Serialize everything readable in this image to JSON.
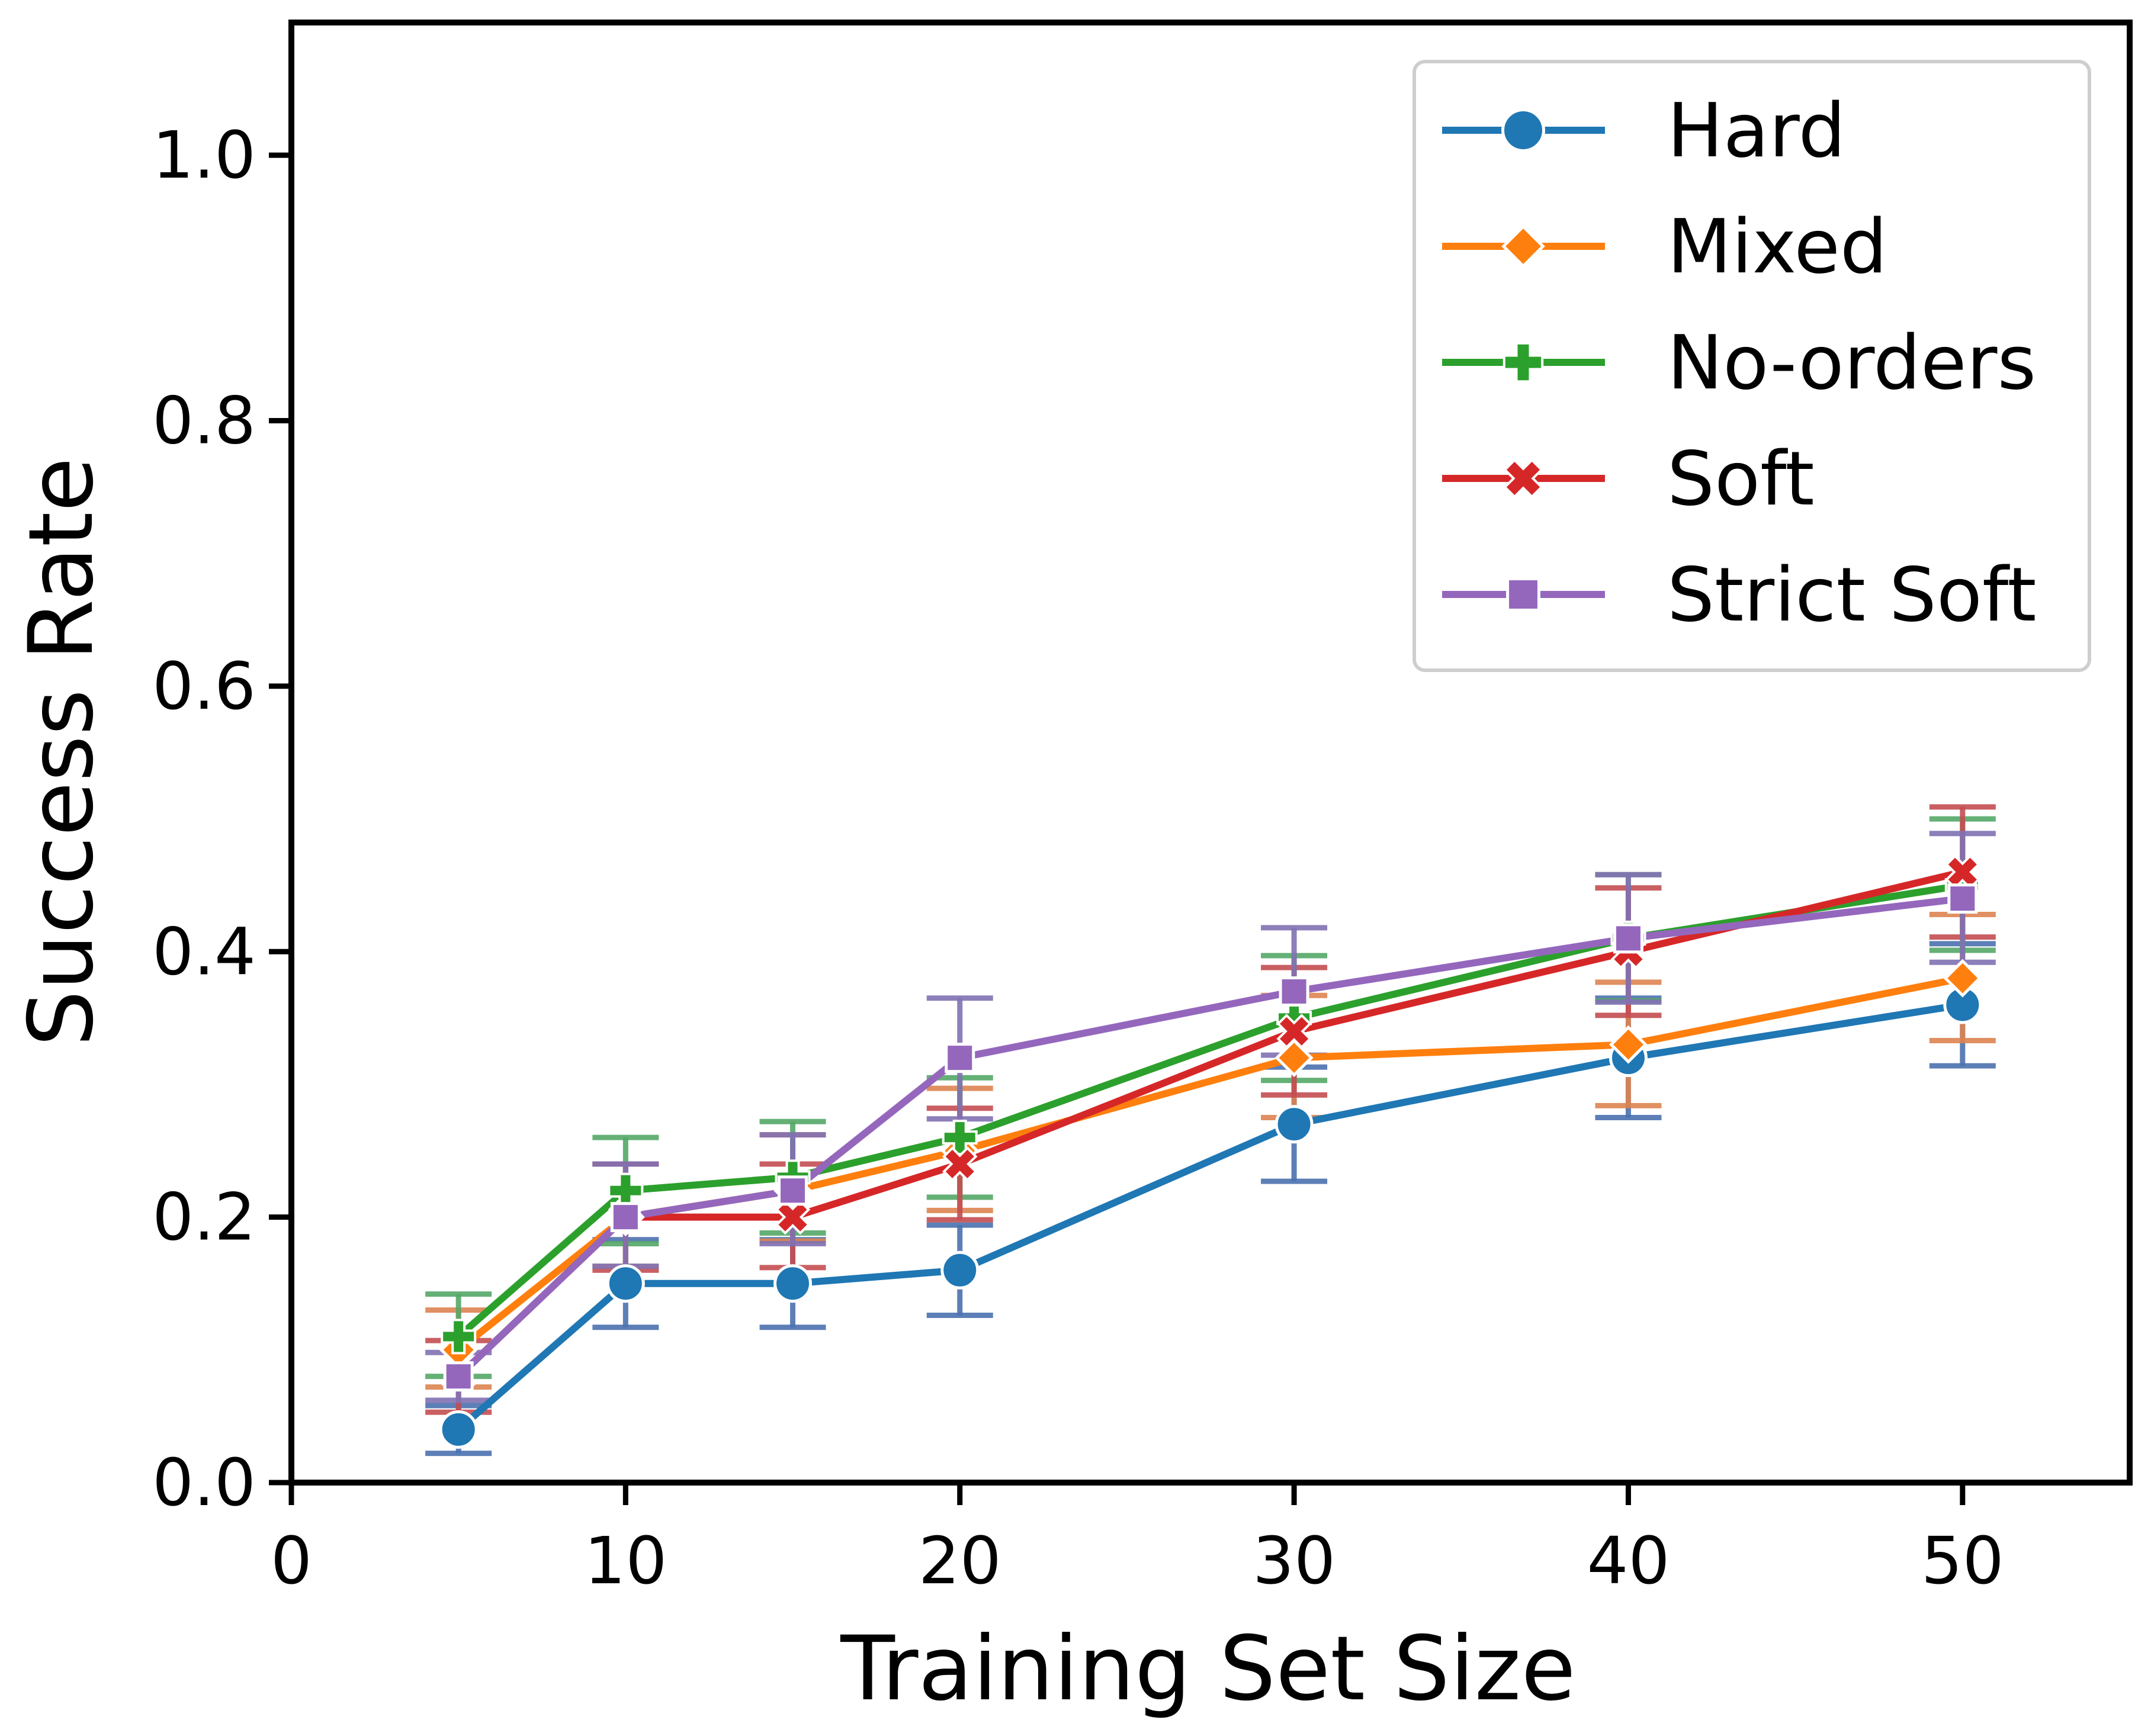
{
  "chart_data": {
    "type": "line",
    "title": "",
    "xlabel": "Training Set Size",
    "ylabel": "Success Rate",
    "xlim": [
      0,
      55
    ],
    "ylim": [
      0,
      1.1
    ],
    "xticks": [
      0,
      10,
      20,
      30,
      40,
      50
    ],
    "yticks": [
      0.0,
      0.2,
      0.4,
      0.6,
      0.8,
      1.0
    ],
    "xtick_labels": [
      "0",
      "10",
      "20",
      "30",
      "40",
      "50"
    ],
    "ytick_labels": [
      "0.0",
      "0.2",
      "0.4",
      "0.6",
      "0.8",
      "1.0"
    ],
    "grid": false,
    "legend_position": "top-right",
    "x": [
      5,
      10,
      15,
      20,
      30,
      40,
      50
    ],
    "series": [
      {
        "name": "Hard",
        "color": "#1f77b4",
        "errcolor": "#4c72b0",
        "marker": "circle",
        "values": [
          0.04,
          0.15,
          0.15,
          0.16,
          0.27,
          0.32,
          0.36
        ],
        "err_low": [
          0.022,
          0.117,
          0.117,
          0.126,
          0.227,
          0.275,
          0.314
        ],
        "err_high": [
          0.058,
          0.183,
          0.183,
          0.194,
          0.313,
          0.365,
          0.406
        ]
      },
      {
        "name": "Mixed",
        "color": "#ff7f0e",
        "errcolor": "#dd8452",
        "marker": "diamond",
        "values": [
          0.1,
          0.2,
          0.22,
          0.25,
          0.32,
          0.33,
          0.38
        ],
        "err_low": [
          0.072,
          0.163,
          0.182,
          0.205,
          0.275,
          0.284,
          0.333
        ],
        "err_high": [
          0.13,
          0.24,
          0.262,
          0.297,
          0.367,
          0.377,
          0.428
        ]
      },
      {
        "name": "No-orders",
        "color": "#2ca02c",
        "errcolor": "#55a868",
        "marker": "plus",
        "values": [
          0.11,
          0.22,
          0.23,
          0.26,
          0.35,
          0.41,
          0.45
        ],
        "err_low": [
          0.08,
          0.18,
          0.188,
          0.215,
          0.303,
          0.363,
          0.401
        ],
        "err_high": [
          0.142,
          0.26,
          0.272,
          0.305,
          0.397,
          0.458,
          0.5
        ]
      },
      {
        "name": "Soft",
        "color": "#d62728",
        "errcolor": "#c44e52",
        "marker": "x",
        "values": [
          0.08,
          0.2,
          0.2,
          0.24,
          0.34,
          0.4,
          0.46
        ],
        "err_low": [
          0.053,
          0.16,
          0.162,
          0.198,
          0.292,
          0.352,
          0.411
        ],
        "err_high": [
          0.107,
          0.24,
          0.24,
          0.282,
          0.388,
          0.448,
          0.509
        ]
      },
      {
        "name": "Strict Soft",
        "color": "#9467bd",
        "errcolor": "#8172b3",
        "marker": "square",
        "values": [
          0.08,
          0.2,
          0.22,
          0.32,
          0.37,
          0.41,
          0.44
        ],
        "err_low": [
          0.062,
          0.163,
          0.18,
          0.274,
          0.322,
          0.362,
          0.392
        ],
        "err_high": [
          0.098,
          0.24,
          0.262,
          0.365,
          0.418,
          0.458,
          0.489
        ]
      }
    ]
  }
}
